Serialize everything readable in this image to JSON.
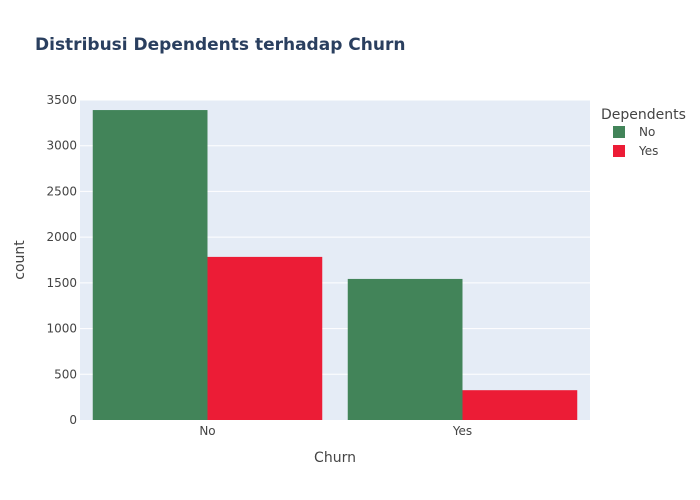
{
  "chart_data": {
    "type": "bar",
    "title": "Distribusi Dependents terhadap Churn",
    "xlabel": "Churn",
    "ylabel": "count",
    "categories": [
      "No",
      "Yes"
    ],
    "series": [
      {
        "name": "No",
        "color": "#428459",
        "values": [
          3390,
          1543
        ]
      },
      {
        "name": "Yes",
        "color": "#ec1c36",
        "values": [
          1784,
          326
        ]
      }
    ],
    "ylim": [
      0,
      3500
    ],
    "yticks": [
      0,
      500,
      1000,
      1500,
      2000,
      2500,
      3000,
      3500
    ],
    "grid": true,
    "plot_background": "#e5ecf6",
    "legend": {
      "title": "Dependents",
      "placement": "top-right"
    }
  }
}
